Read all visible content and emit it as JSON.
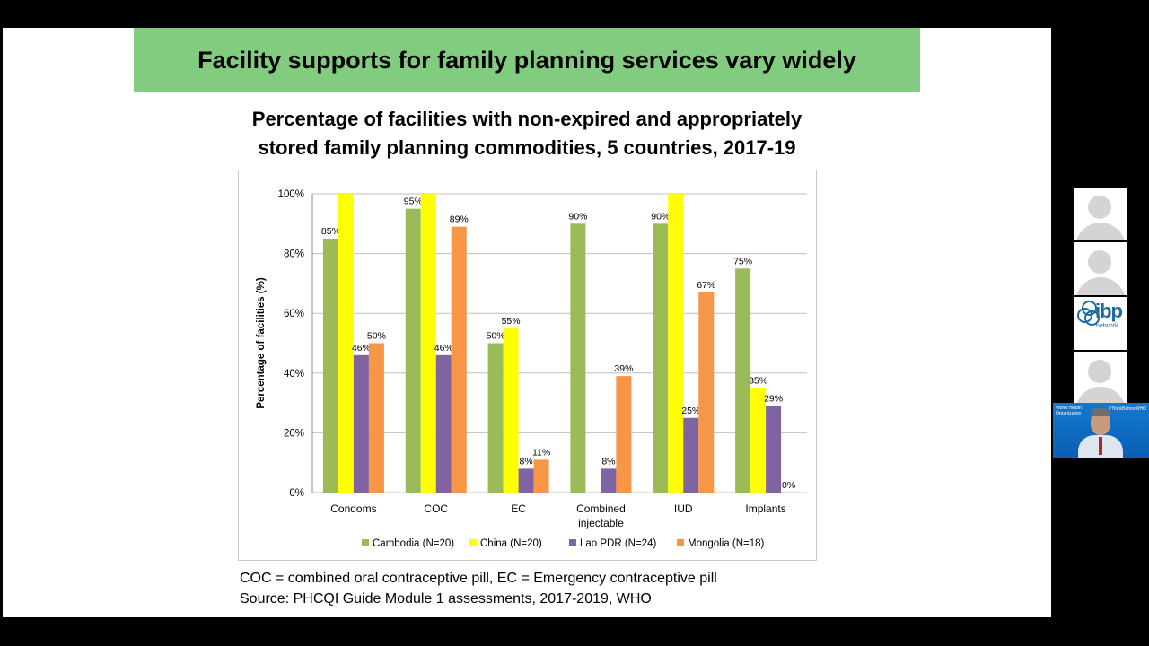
{
  "slide": {
    "banner_title": "Facility supports for family planning services vary widely",
    "chart_title_line1": "Percentage of facilities with non-expired and appropriately",
    "chart_title_line2": "stored family planning commodities, 5 countries, 2017-19",
    "footnote_line1": "COC = combined oral contraceptive pill, EC = Emergency contraceptive pill",
    "footnote_line2": "Source: PHCQI Guide Module 1 assessments, 2017-2019, WHO"
  },
  "participants": {
    "logo_text": "ibp",
    "logo_subtext": "network",
    "speaker_org": "World Health Organization",
    "speaker_tag": "#ThinkBeforeWHO"
  },
  "chart_data": {
    "type": "bar",
    "ylabel": "Percentage of facilities (%)",
    "xlabel": "",
    "ylim": [
      0,
      100
    ],
    "yticks": [
      "0%",
      "20%",
      "40%",
      "60%",
      "80%",
      "100%"
    ],
    "ytick_values": [
      0,
      20,
      40,
      60,
      80,
      100
    ],
    "grid": true,
    "legend_position": "bottom",
    "categories": [
      [
        "Condoms"
      ],
      [
        "COC"
      ],
      [
        "EC"
      ],
      [
        "Combined",
        "injectable"
      ],
      [
        "IUD"
      ],
      [
        "Implants"
      ]
    ],
    "series": [
      {
        "name": "Cambodia (N=20)",
        "color": "#9bbb59",
        "values": [
          85,
          95,
          50,
          90,
          90,
          75
        ],
        "labels": [
          "85%",
          "95%",
          "50%",
          "90%",
          "90%",
          "75%"
        ]
      },
      {
        "name": "China (N=20)",
        "color": "#ffff00",
        "values": [
          100,
          100,
          55,
          null,
          100,
          35
        ],
        "labels": [
          "",
          "",
          "55%",
          "",
          "",
          "35%"
        ]
      },
      {
        "name": "Lao PDR (N=24)",
        "color": "#8064a2",
        "values": [
          46,
          46,
          8,
          8,
          25,
          29
        ],
        "labels": [
          "46%",
          "46%",
          "8%",
          "8%",
          "25%",
          "29%"
        ]
      },
      {
        "name": "Mongolia (N=18)",
        "color": "#f79646",
        "values": [
          50,
          89,
          11,
          39,
          67,
          0
        ],
        "labels": [
          "50%",
          "89%",
          "11%",
          "39%",
          "67%",
          "0%"
        ]
      }
    ]
  }
}
